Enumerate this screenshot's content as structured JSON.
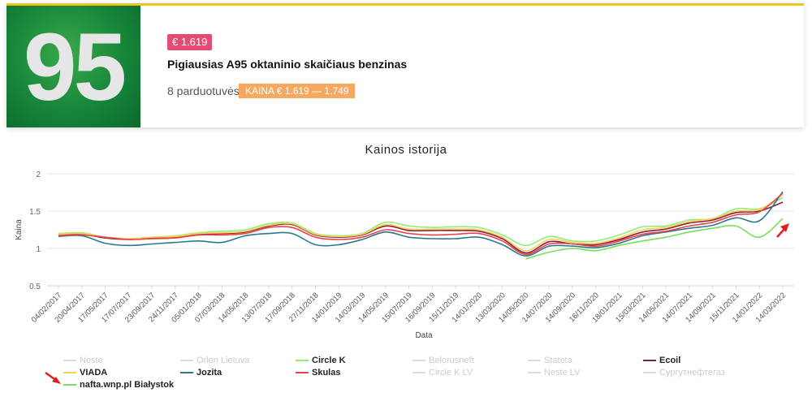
{
  "card": {
    "tile_text": "95",
    "price_badge": "€ 1.619",
    "title": "Pigiausias A95 oktaninio skaičiaus benzinas",
    "stores": "8 parduotuvės",
    "range": "KAINA € 1.619 — 1.749"
  },
  "chart_data": {
    "type": "line",
    "title": "Kainos istorija",
    "xlabel": "Data",
    "ylabel": "Kaina",
    "ylim": [
      0.5,
      2
    ],
    "yticks": [
      "0.5",
      "1",
      "1.5",
      "2"
    ],
    "grid": true,
    "legend_position": "bottom",
    "x": [
      "04/02/2017",
      "20/04/2017",
      "17/05/2017",
      "17/07/2017",
      "23/09/2017",
      "24/11/2017",
      "05/01/2018",
      "07/03/2018",
      "14/05/2018",
      "13/07/2018",
      "17/09/2018",
      "27/11/2018",
      "14/01/2019",
      "14/03/2019",
      "14/05/2019",
      "15/07/2019",
      "16/09/2019",
      "15/11/2019",
      "14/01/2020",
      "13/03/2020",
      "14/05/2020",
      "14/07/2020",
      "14/09/2020",
      "16/11/2020",
      "18/01/2021",
      "15/03/2021",
      "14/05/2021",
      "14/07/2021",
      "14/09/2021",
      "15/11/2021",
      "14/01/2022",
      "14/03/2022"
    ],
    "series": [
      {
        "name": "Circle K",
        "color": "#90ed7d",
        "values": [
          1.2,
          1.21,
          1.15,
          1.13,
          1.15,
          1.17,
          1.21,
          1.23,
          1.25,
          1.33,
          1.34,
          1.2,
          1.17,
          1.2,
          1.35,
          1.3,
          1.28,
          1.29,
          1.28,
          1.18,
          1.04,
          1.16,
          1.1,
          1.1,
          1.18,
          1.29,
          1.3,
          1.38,
          1.4,
          1.53,
          1.53,
          1.68
        ]
      },
      {
        "name": "Ecoil",
        "color": "#8c1c3c",
        "values": [
          1.18,
          1.19,
          1.14,
          1.12,
          1.14,
          1.15,
          1.19,
          1.2,
          1.22,
          1.3,
          1.32,
          1.18,
          1.15,
          1.18,
          1.3,
          1.24,
          1.24,
          1.24,
          1.23,
          1.13,
          0.94,
          1.09,
          1.06,
          1.05,
          1.12,
          1.22,
          1.26,
          1.34,
          1.38,
          1.48,
          1.5,
          1.62
        ]
      },
      {
        "name": "VIADA",
        "color": "#f7d354",
        "values": [
          1.19,
          1.2,
          1.15,
          1.13,
          1.15,
          1.16,
          1.2,
          1.21,
          1.23,
          1.31,
          1.33,
          1.19,
          1.16,
          1.19,
          1.32,
          1.26,
          1.26,
          1.26,
          1.25,
          1.15,
          0.97,
          1.12,
          1.08,
          1.07,
          1.14,
          1.25,
          1.28,
          1.36,
          1.4,
          1.5,
          1.52,
          1.72
        ]
      },
      {
        "name": "Jozita",
        "color": "#2b7a8c",
        "values": [
          1.16,
          1.17,
          1.07,
          1.04,
          1.06,
          1.08,
          1.1,
          1.08,
          1.17,
          1.2,
          1.2,
          1.05,
          1.05,
          1.12,
          1.22,
          1.15,
          1.13,
          1.13,
          1.15,
          1.05,
          0.9,
          1.03,
          1.03,
          1.01,
          1.07,
          1.17,
          1.22,
          1.27,
          1.31,
          1.41,
          1.37,
          1.76
        ]
      },
      {
        "name": "Skulas",
        "color": "#e8434b",
        "values": [
          1.17,
          1.18,
          1.15,
          1.12,
          1.13,
          1.14,
          1.18,
          1.18,
          1.2,
          1.28,
          1.28,
          1.15,
          1.12,
          1.15,
          1.25,
          1.2,
          1.18,
          1.19,
          1.2,
          1.1,
          0.92,
          1.06,
          1.06,
          1.03,
          1.1,
          1.19,
          1.23,
          1.3,
          1.35,
          1.45,
          1.49,
          1.74
        ]
      },
      {
        "name": "nafta.wnp.pl Białystok",
        "color": "#7cdc5c",
        "values": [
          null,
          null,
          null,
          null,
          null,
          null,
          null,
          null,
          null,
          null,
          null,
          null,
          null,
          null,
          null,
          null,
          null,
          null,
          null,
          null,
          0.86,
          0.95,
          1.0,
          0.97,
          1.04,
          1.1,
          1.15,
          1.22,
          1.27,
          1.3,
          1.15,
          1.4
        ]
      }
    ]
  },
  "legend": [
    {
      "label": "Neste",
      "color": "#dddddd",
      "on": false
    },
    {
      "label": "Orlen Lietuva",
      "color": "#dddddd",
      "on": false
    },
    {
      "label": "Circle K",
      "color": "#90ed7d",
      "on": true
    },
    {
      "label": "Belorusneft",
      "color": "#dddddd",
      "on": false
    },
    {
      "label": "Stateta",
      "color": "#dddddd",
      "on": false
    },
    {
      "label": "Ecoil",
      "color": "#8c1c3c",
      "on": true
    },
    {
      "label": "VIADA",
      "color": "#f7d354",
      "on": true
    },
    {
      "label": "Jozita",
      "color": "#2b7a8c",
      "on": true
    },
    {
      "label": "Skulas",
      "color": "#e8434b",
      "on": true
    },
    {
      "label": "Circle K LV",
      "color": "#dddddd",
      "on": false
    },
    {
      "label": "Neste LV",
      "color": "#dddddd",
      "on": false
    },
    {
      "label": "Сургутнефтегаз",
      "color": "#dddddd",
      "on": false
    },
    {
      "label": "nafta.wnp.pl Białystok",
      "color": "#7cdc5c",
      "on": true
    }
  ],
  "colors": {
    "gridline": "#e6e6e6",
    "arrow": "#e02020",
    "range_badge": "#f5a860",
    "price_badge": "#e54c73"
  }
}
